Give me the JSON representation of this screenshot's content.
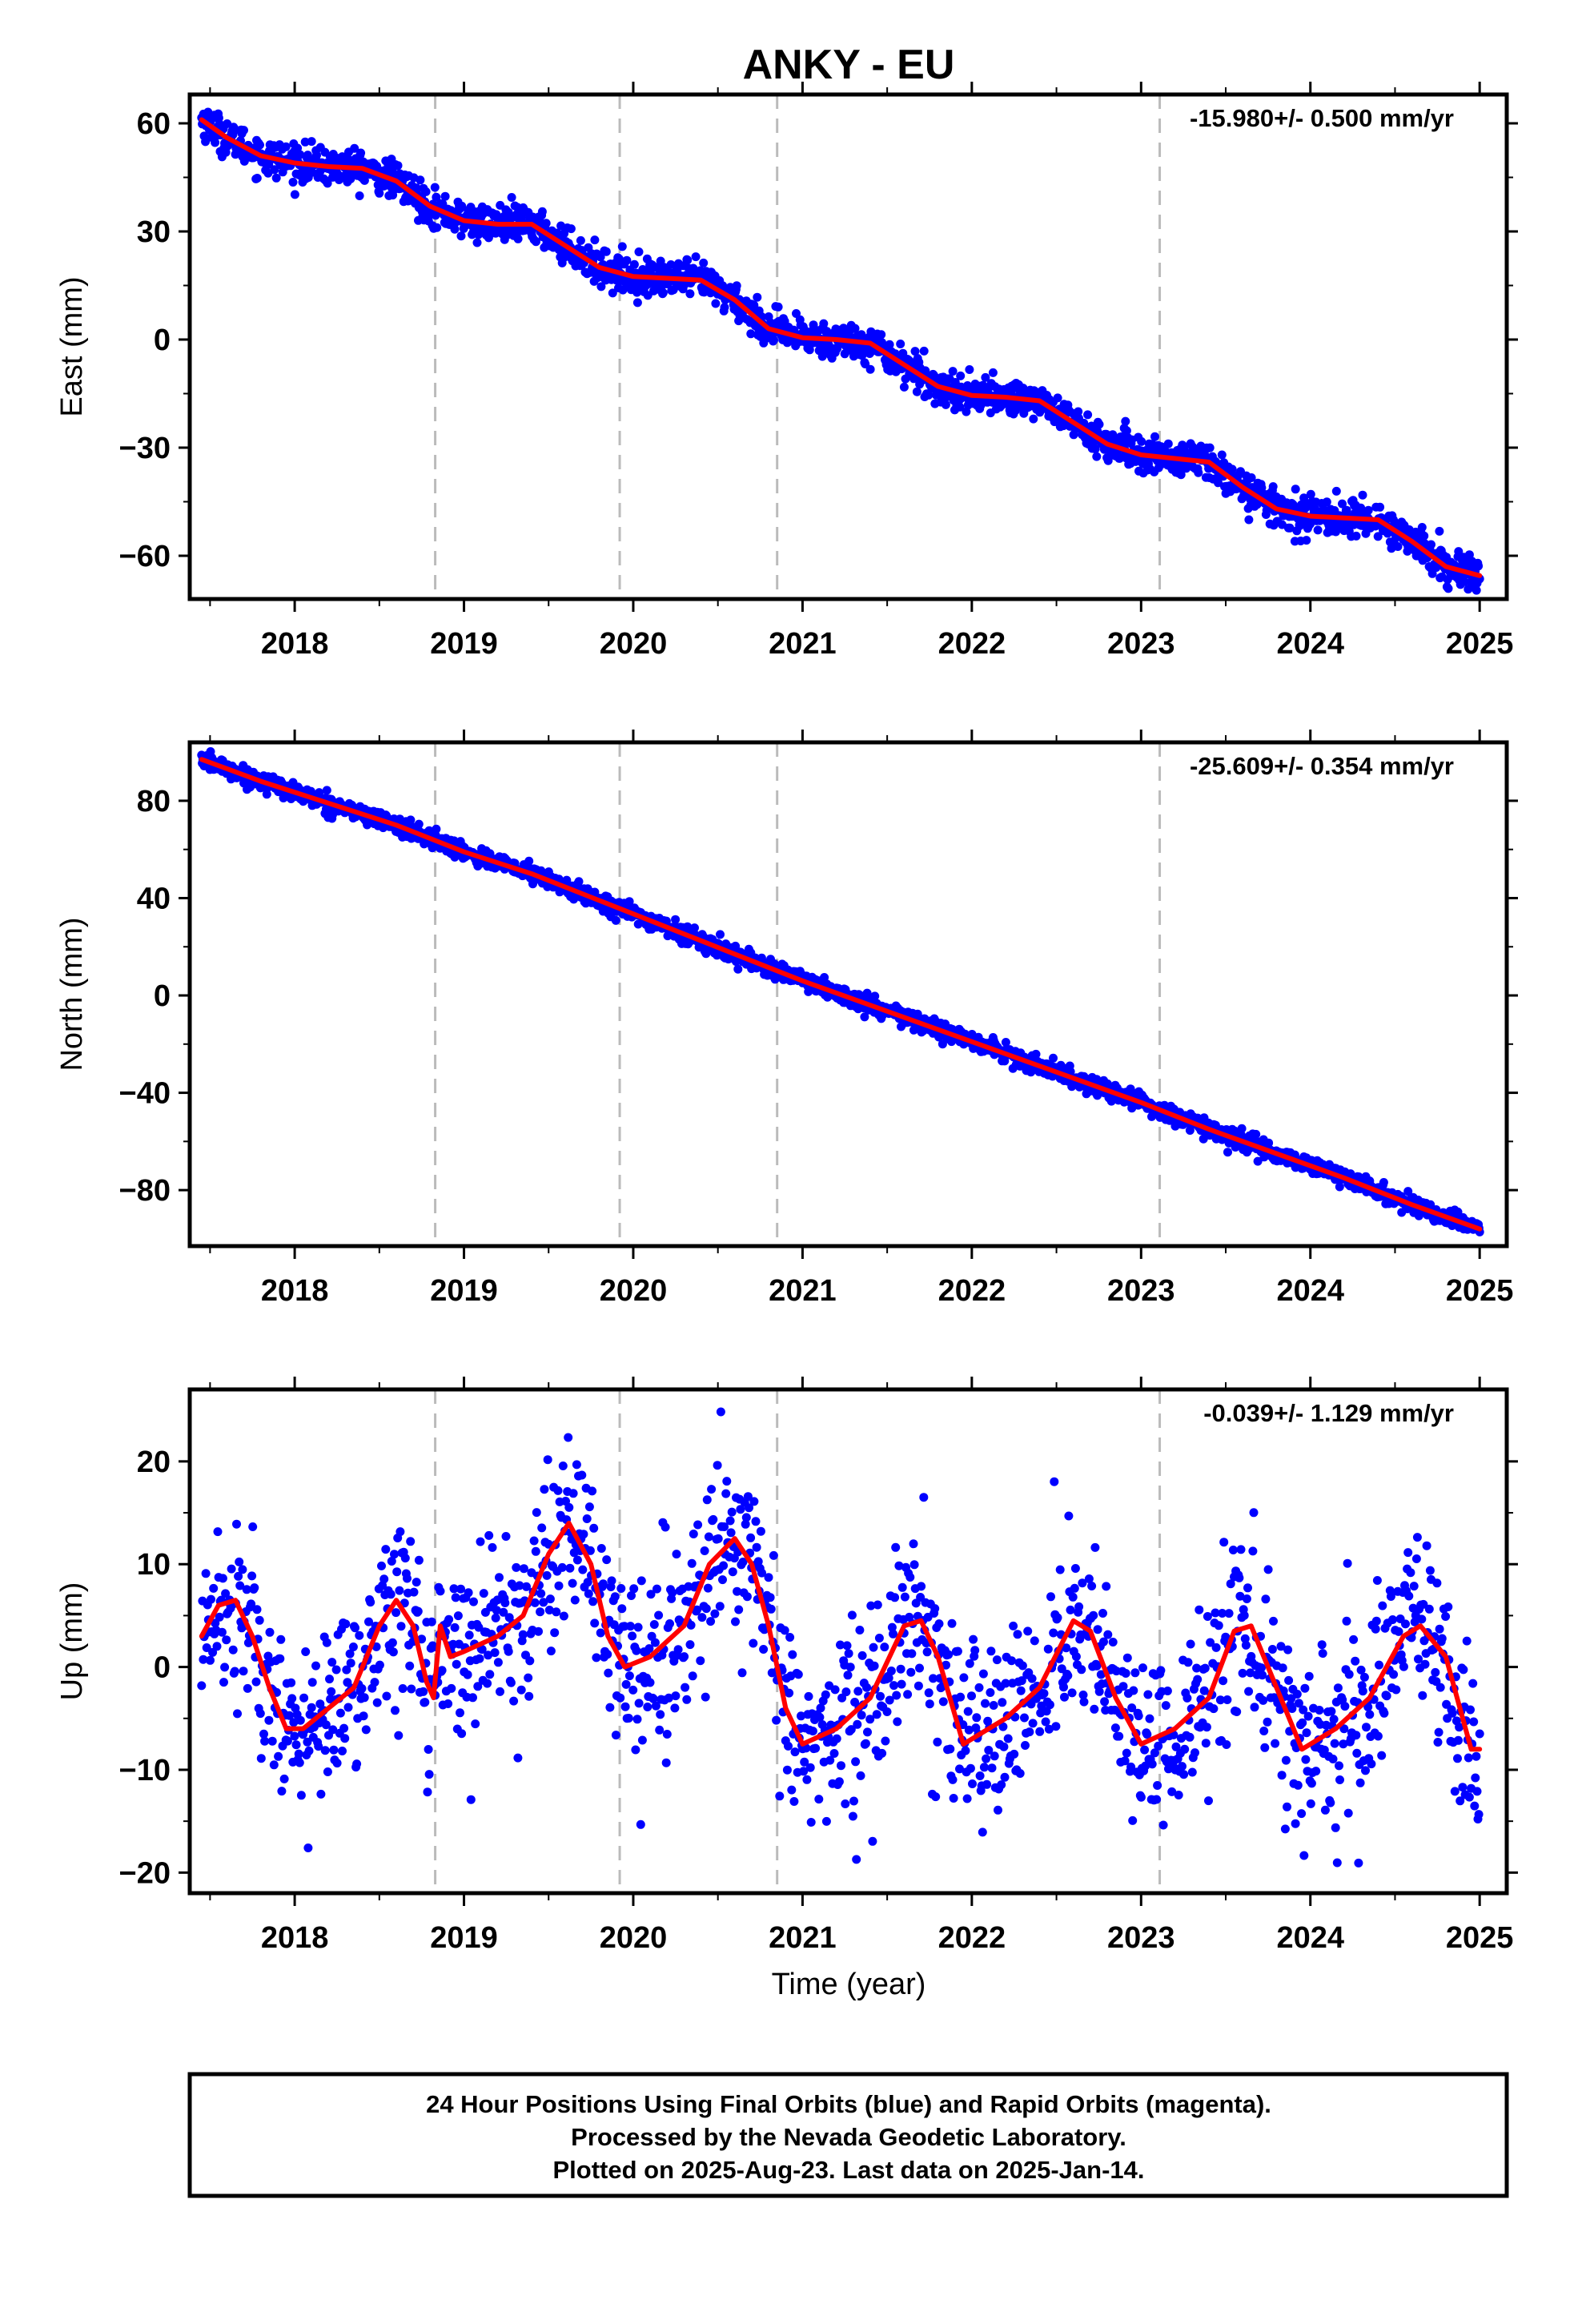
{
  "title": "ANKY - EU",
  "x_axis_label": "Time (year)",
  "x_ticks": [
    "2018",
    "2019",
    "2020",
    "2021",
    "2022",
    "2023",
    "2024",
    "2025"
  ],
  "footer": {
    "lines": [
      "24 Hour Positions Using Final Orbits (blue) and Rapid Orbits (magenta).",
      "Processed by the Nevada Geodetic Laboratory.",
      "Plotted on 2025-Aug-23. Last data on 2025-Jan-14."
    ]
  },
  "colors": {
    "points": "#0000ff",
    "fit": "#ff0000",
    "event_lines": "#bbbbbb",
    "frame": "#000000"
  },
  "chart_data": [
    {
      "type": "scatter",
      "ylabel": "East (mm)",
      "rate_text": "-15.980+/- 0.500 mm/yr",
      "xlim": [
        2017.38,
        2025.16
      ],
      "ylim": [
        -72,
        68
      ],
      "y_ticks": [
        60,
        30,
        0,
        -30,
        -60
      ],
      "event_lines": [
        2018.83,
        2019.92,
        2020.85,
        2023.11
      ],
      "fit_series": {
        "name": "",
        "x": [
          2017.45,
          2017.6,
          2017.8,
          2018.0,
          2018.2,
          2018.4,
          2018.6,
          2018.8,
          2019.0,
          2019.2,
          2019.4,
          2019.6,
          2019.8,
          2020.0,
          2020.2,
          2020.4,
          2020.6,
          2020.8,
          2021.0,
          2021.2,
          2021.4,
          2021.6,
          2021.8,
          2022.0,
          2022.2,
          2022.4,
          2022.6,
          2022.8,
          2023.0,
          2023.2,
          2023.4,
          2023.6,
          2023.8,
          2024.0,
          2024.2,
          2024.4,
          2024.6,
          2024.8,
          2025.0
        ],
        "y": [
          61,
          56,
          51,
          49,
          48,
          47.5,
          44,
          37,
          33,
          32,
          32,
          26,
          20,
          17.5,
          17,
          16.5,
          11,
          3,
          0.5,
          0,
          -1,
          -7,
          -13,
          -15.5,
          -16,
          -17,
          -23,
          -29,
          -32,
          -33,
          -34,
          -41,
          -47,
          -49,
          -49.5,
          -50,
          -56,
          -63,
          -65.5
        ]
      },
      "points_description_series": {
        "name": "",
        "noise_sd": 2.5
      }
    },
    {
      "type": "scatter",
      "ylabel": "North (mm)",
      "rate_text": "-25.609+/- 0.354 mm/yr",
      "xlim": [
        2017.38,
        2025.16
      ],
      "ylim": [
        -103,
        104
      ],
      "y_ticks": [
        80,
        40,
        0,
        -40,
        -80
      ],
      "event_lines": [
        2018.83,
        2019.92,
        2020.85,
        2023.11
      ],
      "fit_series": {
        "name": "",
        "x": [
          2017.45,
          2017.8,
          2018.2,
          2018.6,
          2019.0,
          2019.4,
          2019.8,
          2020.2,
          2020.6,
          2021.0,
          2021.4,
          2021.8,
          2022.2,
          2022.6,
          2023.0,
          2023.4,
          2023.8,
          2024.2,
          2024.6,
          2025.0
        ],
        "y": [
          97,
          88,
          79,
          70,
          59,
          50,
          39,
          28,
          17,
          6,
          -4,
          -14,
          -24,
          -34,
          -44,
          -55,
          -65,
          -75,
          -86,
          -96
        ]
      },
      "points_description_series": {
        "name": "",
        "noise_sd": 1.8
      }
    },
    {
      "type": "scatter",
      "ylabel": "Up (mm)",
      "rate_text": "-0.039+/- 1.129 mm/yr",
      "xlim": [
        2017.38,
        2025.16
      ],
      "ylim": [
        -22,
        27
      ],
      "y_ticks": [
        20,
        10,
        0,
        -10,
        -20
      ],
      "event_lines": [
        2018.83,
        2019.92,
        2020.85,
        2023.11
      ],
      "fit_series": {
        "name": "",
        "x": [
          2017.45,
          2017.55,
          2017.65,
          2017.75,
          2017.85,
          2017.95,
          2018.05,
          2018.2,
          2018.35,
          2018.5,
          2018.6,
          2018.7,
          2018.78,
          2018.82,
          2018.86,
          2018.92,
          2019.0,
          2019.2,
          2019.35,
          2019.5,
          2019.62,
          2019.75,
          2019.85,
          2019.95,
          2020.1,
          2020.3,
          2020.45,
          2020.6,
          2020.7,
          2020.8,
          2020.9,
          2021.0,
          2021.2,
          2021.4,
          2021.6,
          2021.7,
          2021.8,
          2021.95,
          2022.2,
          2022.4,
          2022.6,
          2022.7,
          2022.85,
          2023.0,
          2023.2,
          2023.4,
          2023.55,
          2023.65,
          2023.8,
          2023.95,
          2024.15,
          2024.35,
          2024.55,
          2024.65,
          2024.8,
          2024.95,
          2025.0
        ],
        "y": [
          3,
          6,
          6.5,
          3,
          -2,
          -6,
          -6,
          -4,
          -2,
          4,
          6.5,
          4,
          -1.5,
          -3,
          4,
          1,
          1.5,
          3,
          5,
          11,
          14,
          10,
          3,
          0,
          1,
          4,
          10,
          12.5,
          10,
          4,
          -4,
          -7.5,
          -6,
          -3,
          4,
          4.5,
          1,
          -7.5,
          -5,
          -2,
          4.5,
          3.5,
          -3,
          -7.5,
          -6,
          -3,
          3.5,
          4,
          -2,
          -8,
          -6,
          -3,
          3,
          4,
          1,
          -8,
          -8
        ]
      },
      "points_description_series": {
        "name": "",
        "noise_sd": 4.2
      }
    }
  ]
}
